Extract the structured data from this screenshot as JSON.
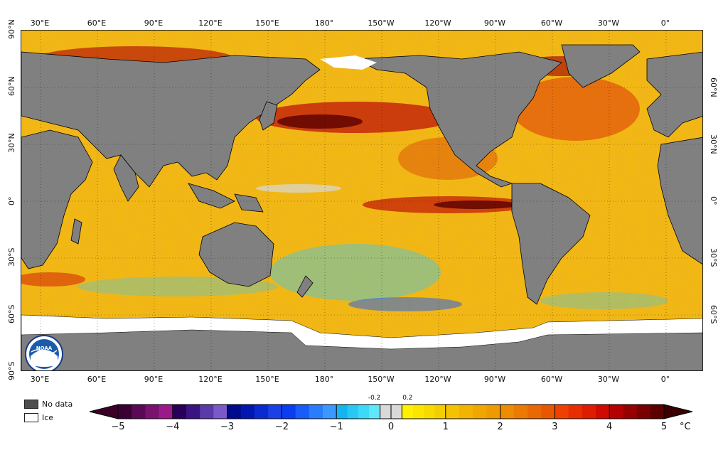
{
  "map": {
    "top_lon_labels": [
      "30°E",
      "60°E",
      "90°E",
      "120°E",
      "150°E",
      "180°",
      "150°W",
      "120°W",
      "90°W",
      "60°W",
      "30°W",
      "0°"
    ],
    "bottom_lon_labels": [
      "30°E",
      "60°E",
      "90°E",
      "120°E",
      "150°E",
      "180°",
      "150°W",
      "120°W",
      "90°W",
      "60°W",
      "30°W",
      "0°"
    ],
    "left_lat_labels": [
      "90°N",
      "60°N",
      "30°N",
      "0°",
      "30°S",
      "60°S",
      "90°S"
    ],
    "right_lat_labels": [
      "60°N",
      "30°N",
      "0°",
      "30°S",
      "60°S"
    ],
    "logo_text": "NOAA",
    "colors": {
      "land": "#808080",
      "ice": "#ffffff",
      "ocean_warm": "#f4a810",
      "ocean_hot": "#d42a0a",
      "ocean_cool": "#36c0f0",
      "neutral": "#d9d9d9"
    }
  },
  "legend": {
    "no_data_label": "No data",
    "ice_label": "Ice",
    "no_data_color": "#4d4d4d",
    "ice_color": "#ffffff"
  },
  "colorbar": {
    "unit": "°C",
    "ticks": [
      "−5",
      "−4",
      "−3",
      "−2",
      "−1",
      "0",
      "1",
      "2",
      "3",
      "4",
      "5"
    ],
    "tick_values": [
      -5,
      -4,
      -3,
      -2,
      -1,
      0,
      1,
      2,
      3,
      4,
      5
    ],
    "minor_labels": [
      "-0.2",
      "0.2"
    ],
    "minor_values": [
      -0.2,
      0.2
    ],
    "segments": [
      {
        "from": -5,
        "to": -4,
        "colors": [
          "#3b0033",
          "#5a0a55",
          "#7a1270",
          "#9a1a8a"
        ]
      },
      {
        "from": -4,
        "to": -3,
        "colors": [
          "#28005a",
          "#3a1480",
          "#5a3aa8",
          "#7a5ac8"
        ]
      },
      {
        "from": -3,
        "to": -2,
        "colors": [
          "#000a8c",
          "#0018b0",
          "#0a2ad0",
          "#1a40e8"
        ]
      },
      {
        "from": -2,
        "to": -1,
        "colors": [
          "#0a3cf0",
          "#1a5cf8",
          "#2a7cfc",
          "#3a98fe"
        ]
      },
      {
        "from": -1,
        "to": -0.2,
        "colors": [
          "#14b4f0",
          "#28c8f4",
          "#3cdaf8",
          "#60e8fa"
        ]
      },
      {
        "from": -0.2,
        "to": 0.2,
        "colors": [
          "#d9d9d9"
        ]
      },
      {
        "from": 0.2,
        "to": 1,
        "colors": [
          "#fff200",
          "#fce600",
          "#f8da00",
          "#f4ce00"
        ]
      },
      {
        "from": 1,
        "to": 2,
        "colors": [
          "#f4c200",
          "#f2b400",
          "#f0a800",
          "#ee9a00"
        ]
      },
      {
        "from": 2,
        "to": 3,
        "colors": [
          "#ec8c00",
          "#ec7a00",
          "#ea6800",
          "#e85600"
        ]
      },
      {
        "from": 3,
        "to": 4,
        "colors": [
          "#f04000",
          "#e82e00",
          "#e01c00",
          "#d00a00"
        ]
      },
      {
        "from": 4,
        "to": 5,
        "colors": [
          "#b40000",
          "#960000",
          "#780000",
          "#5a0000"
        ]
      }
    ]
  }
}
